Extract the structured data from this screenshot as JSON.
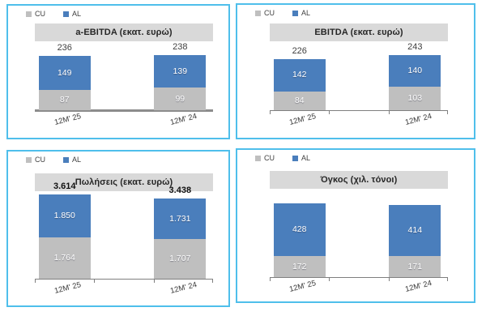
{
  "colors": {
    "cu": "#bfbfbf",
    "al": "#4a7ebc",
    "panel_border": "#4fbfeb",
    "title_band": "#d9d9d9",
    "axis": "#7f7f7f",
    "value_label": "#ffffff"
  },
  "chart_data": [
    {
      "type": "bar",
      "stacked": true,
      "title": "a-EBITDA (εκατ. ευρώ)",
      "categories": [
        "12M' 25",
        "12M' 24"
      ],
      "series": [
        {
          "name": "CU",
          "color": "#bfbfbf",
          "values": [
            87,
            99
          ],
          "labels": [
            "87",
            "99"
          ]
        },
        {
          "name": "AL",
          "color": "#4a7ebc",
          "values": [
            149,
            139
          ],
          "labels": [
            "149",
            "139"
          ]
        }
      ],
      "totals": [
        "236",
        "238"
      ],
      "show_totals": true,
      "totals_bold": false,
      "legend_position": "top-left",
      "grid": false
    },
    {
      "type": "bar",
      "stacked": true,
      "title": "EBITDA (εκατ. ευρώ)",
      "categories": [
        "12M' 25",
        "12M' 24"
      ],
      "series": [
        {
          "name": "CU",
          "color": "#bfbfbf",
          "values": [
            84,
            103
          ],
          "labels": [
            "84",
            "103"
          ]
        },
        {
          "name": "AL",
          "color": "#4a7ebc",
          "values": [
            142,
            140
          ],
          "labels": [
            "142",
            "140"
          ]
        }
      ],
      "totals": [
        "226",
        "243"
      ],
      "show_totals": true,
      "totals_bold": false,
      "legend_position": "top-left",
      "grid": false
    },
    {
      "type": "bar",
      "stacked": true,
      "title": "Πωλήσεις (εκατ. ευρώ)",
      "categories": [
        "12M' 25",
        "12M' 24"
      ],
      "series": [
        {
          "name": "CU",
          "color": "#bfbfbf",
          "values": [
            1764,
            1707
          ],
          "labels": [
            "1.764",
            "1.707"
          ]
        },
        {
          "name": "AL",
          "color": "#4a7ebc",
          "values": [
            1850,
            1731
          ],
          "labels": [
            "1.850",
            "1.731"
          ]
        }
      ],
      "totals": [
        "3.614",
        "3.438"
      ],
      "show_totals": true,
      "totals_bold": true,
      "legend_position": "top-left",
      "grid": false
    },
    {
      "type": "bar",
      "stacked": true,
      "title": "Όγκος (χιλ. τόνοι)",
      "categories": [
        "12M' 25",
        "12M' 24"
      ],
      "series": [
        {
          "name": "CU",
          "color": "#bfbfbf",
          "values": [
            172,
            171
          ],
          "labels": [
            "172",
            "171"
          ]
        },
        {
          "name": "AL",
          "color": "#4a7ebc",
          "values": [
            428,
            414
          ],
          "labels": [
            "428",
            "414"
          ]
        }
      ],
      "totals": [],
      "show_totals": false,
      "totals_bold": false,
      "legend_position": "top-left",
      "grid": false
    }
  ]
}
